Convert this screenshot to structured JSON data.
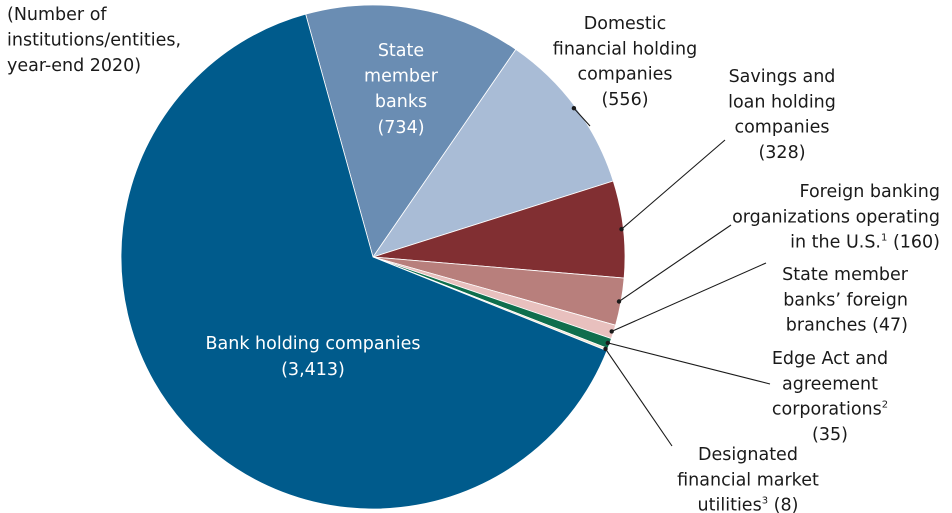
{
  "chart_data": {
    "type": "pie",
    "title": "",
    "note_lines": [
      "(Number of",
      "institutions/entities,",
      "year-end 2020)"
    ],
    "slices": [
      {
        "name": "State member banks",
        "value": 734,
        "color": "#6a8db3",
        "label_lines": [
          "State",
          "member",
          "banks",
          "(734)"
        ]
      },
      {
        "name": "Domestic financial holding companies",
        "value": 556,
        "color": "#a9bcd6",
        "label_lines": [
          "Domestic",
          "financial holding",
          "companies",
          "(556)"
        ]
      },
      {
        "name": "Savings and loan holding companies",
        "value": 328,
        "color": "#812f32",
        "label_lines": [
          "Savings and",
          "loan holding",
          "companies",
          "(328)"
        ]
      },
      {
        "name": "Foreign banking organizations operating in the U.S.",
        "value": 160,
        "color": "#b87f7c",
        "label_lines": [
          "Foreign banking",
          "organizations operating",
          "in the U.S.",
          "(160)"
        ],
        "footnote": "1"
      },
      {
        "name": "State member banks' foreign branches",
        "value": 47,
        "color": "#e8c0be",
        "label_lines": [
          "State member",
          "banks’ foreign",
          "branches (47)"
        ]
      },
      {
        "name": "Edge Act and agreement corporations",
        "value": 35,
        "color": "#0f6e4d",
        "label_lines": [
          "Edge Act and",
          "agreement",
          "corporations",
          "(35)"
        ],
        "footnote": "2"
      },
      {
        "name": "Designated financial market utilities",
        "value": 8,
        "color": "#f3e6d6",
        "label_lines": [
          "Designated",
          "financial market",
          "utilities",
          "(8)"
        ],
        "footnote": "3"
      },
      {
        "name": "Bank holding companies",
        "value": 3413,
        "color": "#005b8c",
        "label_lines": [
          "Bank holding companies",
          "(3,413)"
        ]
      }
    ]
  }
}
